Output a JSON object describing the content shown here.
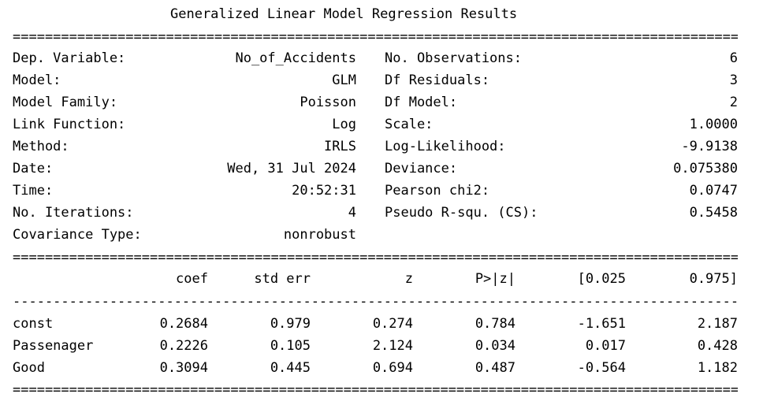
{
  "title": "Generalized Linear Model Regression Results",
  "sep_double": "====================================================================================================",
  "sep_single": "----------------------------------------------------------------------------------------------------",
  "info_left": [
    {
      "label": "Dep. Variable:",
      "value": "No_of_Accidents"
    },
    {
      "label": "Model:",
      "value": "GLM"
    },
    {
      "label": "Model Family:",
      "value": "Poisson"
    },
    {
      "label": "Link Function:",
      "value": "Log"
    },
    {
      "label": "Method:",
      "value": "IRLS"
    },
    {
      "label": "Date:",
      "value": "Wed, 31 Jul 2024"
    },
    {
      "label": "Time:",
      "value": "20:52:31"
    },
    {
      "label": "No. Iterations:",
      "value": "4"
    },
    {
      "label": "Covariance Type:",
      "value": "nonrobust"
    }
  ],
  "info_right": [
    {
      "label": "No. Observations:",
      "value": "6"
    },
    {
      "label": "Df Residuals:",
      "value": "3"
    },
    {
      "label": "Df Model:",
      "value": "2"
    },
    {
      "label": "Scale:",
      "value": "1.0000"
    },
    {
      "label": "Log-Likelihood:",
      "value": "-9.9138"
    },
    {
      "label": "Deviance:",
      "value": "0.075380"
    },
    {
      "label": "Pearson chi2:",
      "value": "0.0747"
    },
    {
      "label": "Pseudo R-squ. (CS):",
      "value": "0.5458"
    }
  ],
  "coef_table": {
    "headers": [
      "coef",
      "std err",
      "z",
      "P>|z|",
      "[0.025",
      "0.975]"
    ],
    "rows": [
      {
        "name": "const",
        "values": [
          "0.2684",
          "0.979",
          "0.274",
          "0.784",
          "-1.651",
          "2.187"
        ]
      },
      {
        "name": "Passenager",
        "values": [
          "0.2226",
          "0.105",
          "2.124",
          "0.034",
          "0.017",
          "0.428"
        ]
      },
      {
        "name": "Good",
        "values": [
          "0.3094",
          "0.445",
          "0.694",
          "0.487",
          "-0.564",
          "1.182"
        ]
      }
    ]
  }
}
